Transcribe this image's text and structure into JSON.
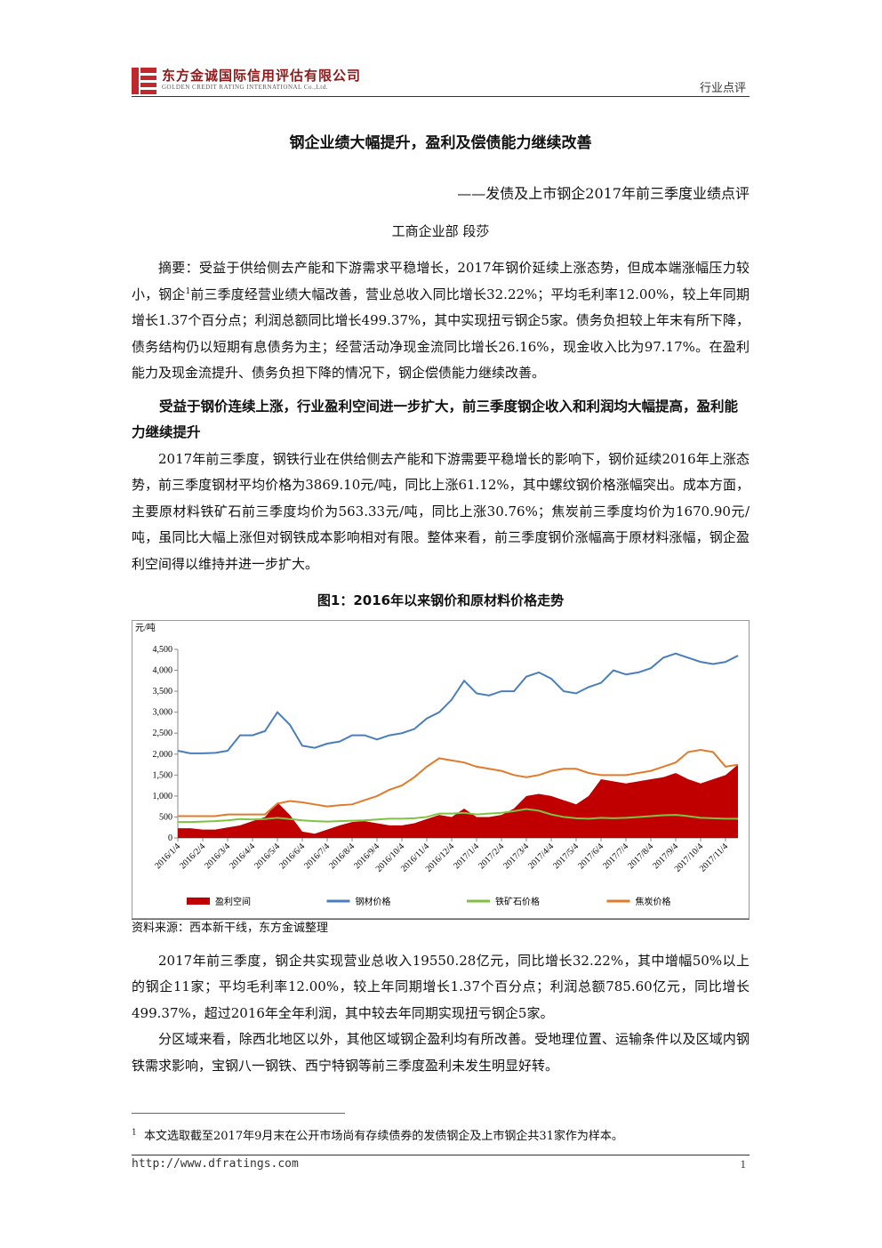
{
  "header": {
    "company": "东方金诚国际信用评估有限公司",
    "company_en": "GOLDEN CREDIT RATING INTERNATIONAL Co.,Ltd.",
    "doc_type": "行业点评"
  },
  "title": "钢企业绩大幅提升，盈利及偿债能力继续改善",
  "subtitle": "——发债及上市钢企2017年前三季度业绩点评",
  "author": "工商企业部 段莎",
  "abstract": [
    "摘要：受益于供给侧去产能和下游需求平稳增长，2017年钢价延续上涨态势，但成本端涨幅压力较小，钢企",
    "1",
    "前三季度经营业绩大幅改善，营业总收入同比增长32.22%；平均毛利率12.00%，较上年同期增长1.37个百分点；利润总额同比增长499.37%，其中实现扭亏钢企5家。债务负担较上年末有所下降，债务结构仍以短期有息债务为主；经营活动净现金流同比增长26.16%，现金收入比为97.17%。在盈利能力及现金流提升、债务负担下降的情况下，钢企偿债能力继续改善。"
  ],
  "section_heading": "受益于钢价连续上涨，行业盈利空间进一步扩大，前三季度钢企收入和利润均大幅提高，盈利能力继续提升",
  "paragraphs": [
    "2017年前三季度，钢铁行业在供给侧去产能和下游需要平稳增长的影响下，钢价延续2016年上涨态势，前三季度钢材平均价格为3869.10元/吨，同比上涨61.12%，其中螺纹钢价格涨幅突出。成本方面，主要原材料铁矿石前三季度均价为563.33元/吨，同比上涨30.76%；焦炭前三季度均价为1670.90元/吨，虽同比大幅上涨但对钢铁成本影响相对有限。整体来看，前三季度钢价涨幅高于原材料涨幅，钢企盈利空间得以维持并进一步扩大。",
    "2017年前三季度，钢企共实现营业总收入19550.28亿元，同比增长32.22%，其中增幅50%以上的钢企11家；平均毛利率12.00%，较上年同期增长1.37个百分点；利润总额785.60亿元，同比增长499.37%，超过2016年全年利润，其中较去年同期实现扭亏钢企5家。",
    "分区域来看，除西北地区以外，其他区域钢企盈利均有所改善。受地理位置、运输条件以及区域内钢铁需求影响，宝钢八一钢铁、西宁特钢等前三季度盈利未发生明显好转。"
  ],
  "figure_caption": "图1：2016年以来钢价和原材料价格走势",
  "figure_source": "资料来源：西本新干线，东方金诚整理",
  "chart_data": {
    "type": "line",
    "y_label": "元/吨",
    "categories": [
      "2016/1/4",
      null,
      "2016/2/4",
      null,
      "2016/3/4",
      null,
      "2016/4/4",
      null,
      "2016/5/4",
      null,
      "2016/6/4",
      null,
      "2016/7/4",
      null,
      "2016/8/4",
      null,
      "2016/9/4",
      null,
      "2016/10/4",
      null,
      "2016/11/4",
      null,
      "2016/12/4",
      null,
      "2017/1/4",
      null,
      "2017/2/4",
      null,
      "2017/3/4",
      null,
      "2017/4/4",
      null,
      "2017/5/4",
      null,
      "2017/6/4",
      null,
      "2017/7/4",
      null,
      "2017/8/4",
      null,
      "2017/9/4",
      null,
      "2017/10/4",
      null,
      "2017/11/4",
      null
    ],
    "series": [
      {
        "name": "盈利空间",
        "type": "area",
        "color": "#c00000",
        "values": [
          230,
          230,
          200,
          200,
          250,
          300,
          400,
          500,
          850,
          550,
          150,
          100,
          200,
          300,
          380,
          400,
          350,
          300,
          300,
          350,
          450,
          550,
          500,
          700,
          500,
          500,
          550,
          700,
          1000,
          1050,
          1000,
          900,
          800,
          1000,
          1400,
          1350,
          1300,
          1350,
          1400,
          1450,
          1550,
          1400,
          1300,
          1400,
          1500,
          1750
        ]
      },
      {
        "name": "钢材价格",
        "type": "line",
        "color": "#4a7ebb",
        "values": [
          2080,
          2020,
          2020,
          2030,
          2080,
          2450,
          2450,
          2550,
          3000,
          2700,
          2200,
          2150,
          2250,
          2300,
          2450,
          2450,
          2350,
          2450,
          2500,
          2600,
          2850,
          3000,
          3300,
          3750,
          3450,
          3400,
          3500,
          3500,
          3850,
          3950,
          3800,
          3500,
          3450,
          3600,
          3700,
          4000,
          3900,
          3950,
          4050,
          4300,
          4400,
          4300,
          4200,
          4150,
          4200,
          4350
        ]
      },
      {
        "name": "铁矿石价格",
        "type": "line",
        "color": "#7fc241",
        "values": [
          380,
          380,
          390,
          400,
          420,
          450,
          440,
          450,
          480,
          450,
          420,
          400,
          390,
          400,
          410,
          420,
          440,
          460,
          460,
          470,
          500,
          580,
          580,
          600,
          560,
          580,
          600,
          640,
          690,
          650,
          560,
          500,
          470,
          460,
          480,
          470,
          480,
          500,
          520,
          540,
          550,
          520,
          480,
          470,
          460,
          460
        ]
      },
      {
        "name": "焦炭价格",
        "type": "line",
        "color": "#e07b2b",
        "values": [
          520,
          520,
          520,
          520,
          560,
          560,
          560,
          560,
          820,
          880,
          850,
          800,
          750,
          780,
          800,
          900,
          1000,
          1150,
          1250,
          1450,
          1700,
          1900,
          1850,
          1800,
          1700,
          1650,
          1600,
          1500,
          1450,
          1500,
          1600,
          1650,
          1650,
          1550,
          1500,
          1500,
          1500,
          1550,
          1600,
          1700,
          1800,
          2050,
          2100,
          2050,
          1700,
          1750
        ]
      }
    ],
    "ylim": [
      0,
      4500
    ],
    "yticks": [
      0,
      500,
      {
        "value": 1000,
        "label": "1,000"
      },
      {
        "value": 1500,
        "label": "1,500"
      },
      {
        "value": 2000,
        "label": "2,000"
      },
      {
        "value": 2500,
        "label": "2,500"
      },
      {
        "value": 3000,
        "label": "3,000"
      },
      {
        "value": 3500,
        "label": "3,500"
      },
      {
        "value": 4000,
        "label": "4,000"
      },
      {
        "value": 4500,
        "label": "4,500"
      }
    ],
    "grid": false,
    "legend": "bottom"
  },
  "footnote": {
    "marker": "1",
    "text": "本文选取截至2017年9月末在公开市场尚有存续债券的发债钢企及上市钢企共31家作为样本。"
  },
  "footer": {
    "url": "http://www.dfratings.com",
    "page": "1"
  }
}
